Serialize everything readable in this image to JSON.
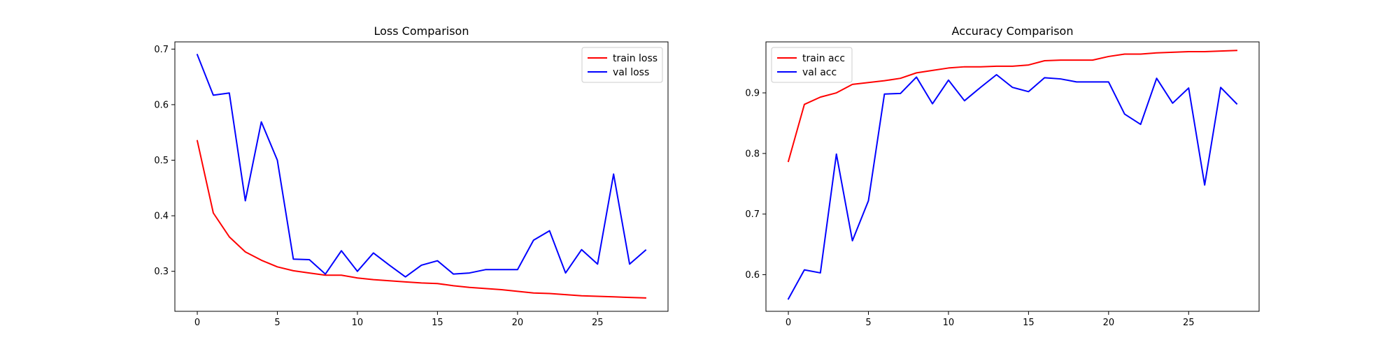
{
  "chart_data": [
    {
      "type": "line",
      "title": "Loss Comparison",
      "xlabel": "",
      "ylabel": "",
      "xlim": [
        -1.4,
        29.4
      ],
      "ylim": [
        0.228,
        0.713
      ],
      "xticks": [
        0,
        5,
        10,
        15,
        20,
        25
      ],
      "yticks": [
        0.3,
        0.4,
        0.5,
        0.6,
        0.7
      ],
      "grid": false,
      "legend_position": "top-right",
      "x": [
        0,
        1,
        2,
        3,
        4,
        5,
        6,
        7,
        8,
        9,
        10,
        11,
        12,
        13,
        14,
        15,
        16,
        17,
        18,
        19,
        20,
        21,
        22,
        23,
        24,
        25,
        26,
        27,
        28
      ],
      "series": [
        {
          "name": "train loss",
          "color": "#ff0000",
          "values": [
            0.535,
            0.405,
            0.362,
            0.335,
            0.32,
            0.308,
            0.301,
            0.297,
            0.293,
            0.293,
            0.288,
            0.285,
            0.283,
            0.281,
            0.279,
            0.278,
            0.274,
            0.271,
            0.269,
            0.267,
            0.264,
            0.261,
            0.26,
            0.258,
            0.256,
            0.255,
            0.254,
            0.253,
            0.252
          ]
        },
        {
          "name": "val loss",
          "color": "#0000ff",
          "values": [
            0.69,
            0.617,
            0.621,
            0.427,
            0.569,
            0.5,
            0.322,
            0.321,
            0.295,
            0.337,
            0.3,
            0.333,
            0.311,
            0.29,
            0.311,
            0.319,
            0.295,
            0.297,
            0.303,
            0.303,
            0.303,
            0.356,
            0.373,
            0.297,
            0.339,
            0.313,
            0.475,
            0.313,
            0.338
          ]
        }
      ]
    },
    {
      "type": "line",
      "title": "Accuracy Comparison",
      "xlabel": "",
      "ylabel": "",
      "xlim": [
        -1.4,
        29.4
      ],
      "ylim": [
        0.5396,
        0.9841
      ],
      "xticks": [
        0,
        5,
        10,
        15,
        20,
        25
      ],
      "yticks": [
        0.6,
        0.7,
        0.8,
        0.9
      ],
      "grid": false,
      "legend_position": "top-left",
      "x": [
        0,
        1,
        2,
        3,
        4,
        5,
        6,
        7,
        8,
        9,
        10,
        11,
        12,
        13,
        14,
        15,
        16,
        17,
        18,
        19,
        20,
        21,
        22,
        23,
        24,
        25,
        26,
        27,
        28
      ],
      "series": [
        {
          "name": "train acc",
          "color": "#ff0000",
          "values": [
            0.787,
            0.881,
            0.893,
            0.9,
            0.914,
            0.917,
            0.92,
            0.924,
            0.933,
            0.937,
            0.941,
            0.943,
            0.943,
            0.944,
            0.944,
            0.946,
            0.953,
            0.954,
            0.954,
            0.954,
            0.96,
            0.964,
            0.964,
            0.966,
            0.967,
            0.968,
            0.968,
            0.969,
            0.97
          ]
        },
        {
          "name": "val acc",
          "color": "#0000ff",
          "values": [
            0.56,
            0.608,
            0.603,
            0.799,
            0.656,
            0.722,
            0.898,
            0.899,
            0.926,
            0.882,
            0.921,
            0.887,
            0.909,
            0.93,
            0.909,
            0.902,
            0.925,
            0.923,
            0.918,
            0.918,
            0.918,
            0.865,
            0.848,
            0.924,
            0.883,
            0.908,
            0.748,
            0.909,
            0.882
          ]
        }
      ]
    }
  ]
}
